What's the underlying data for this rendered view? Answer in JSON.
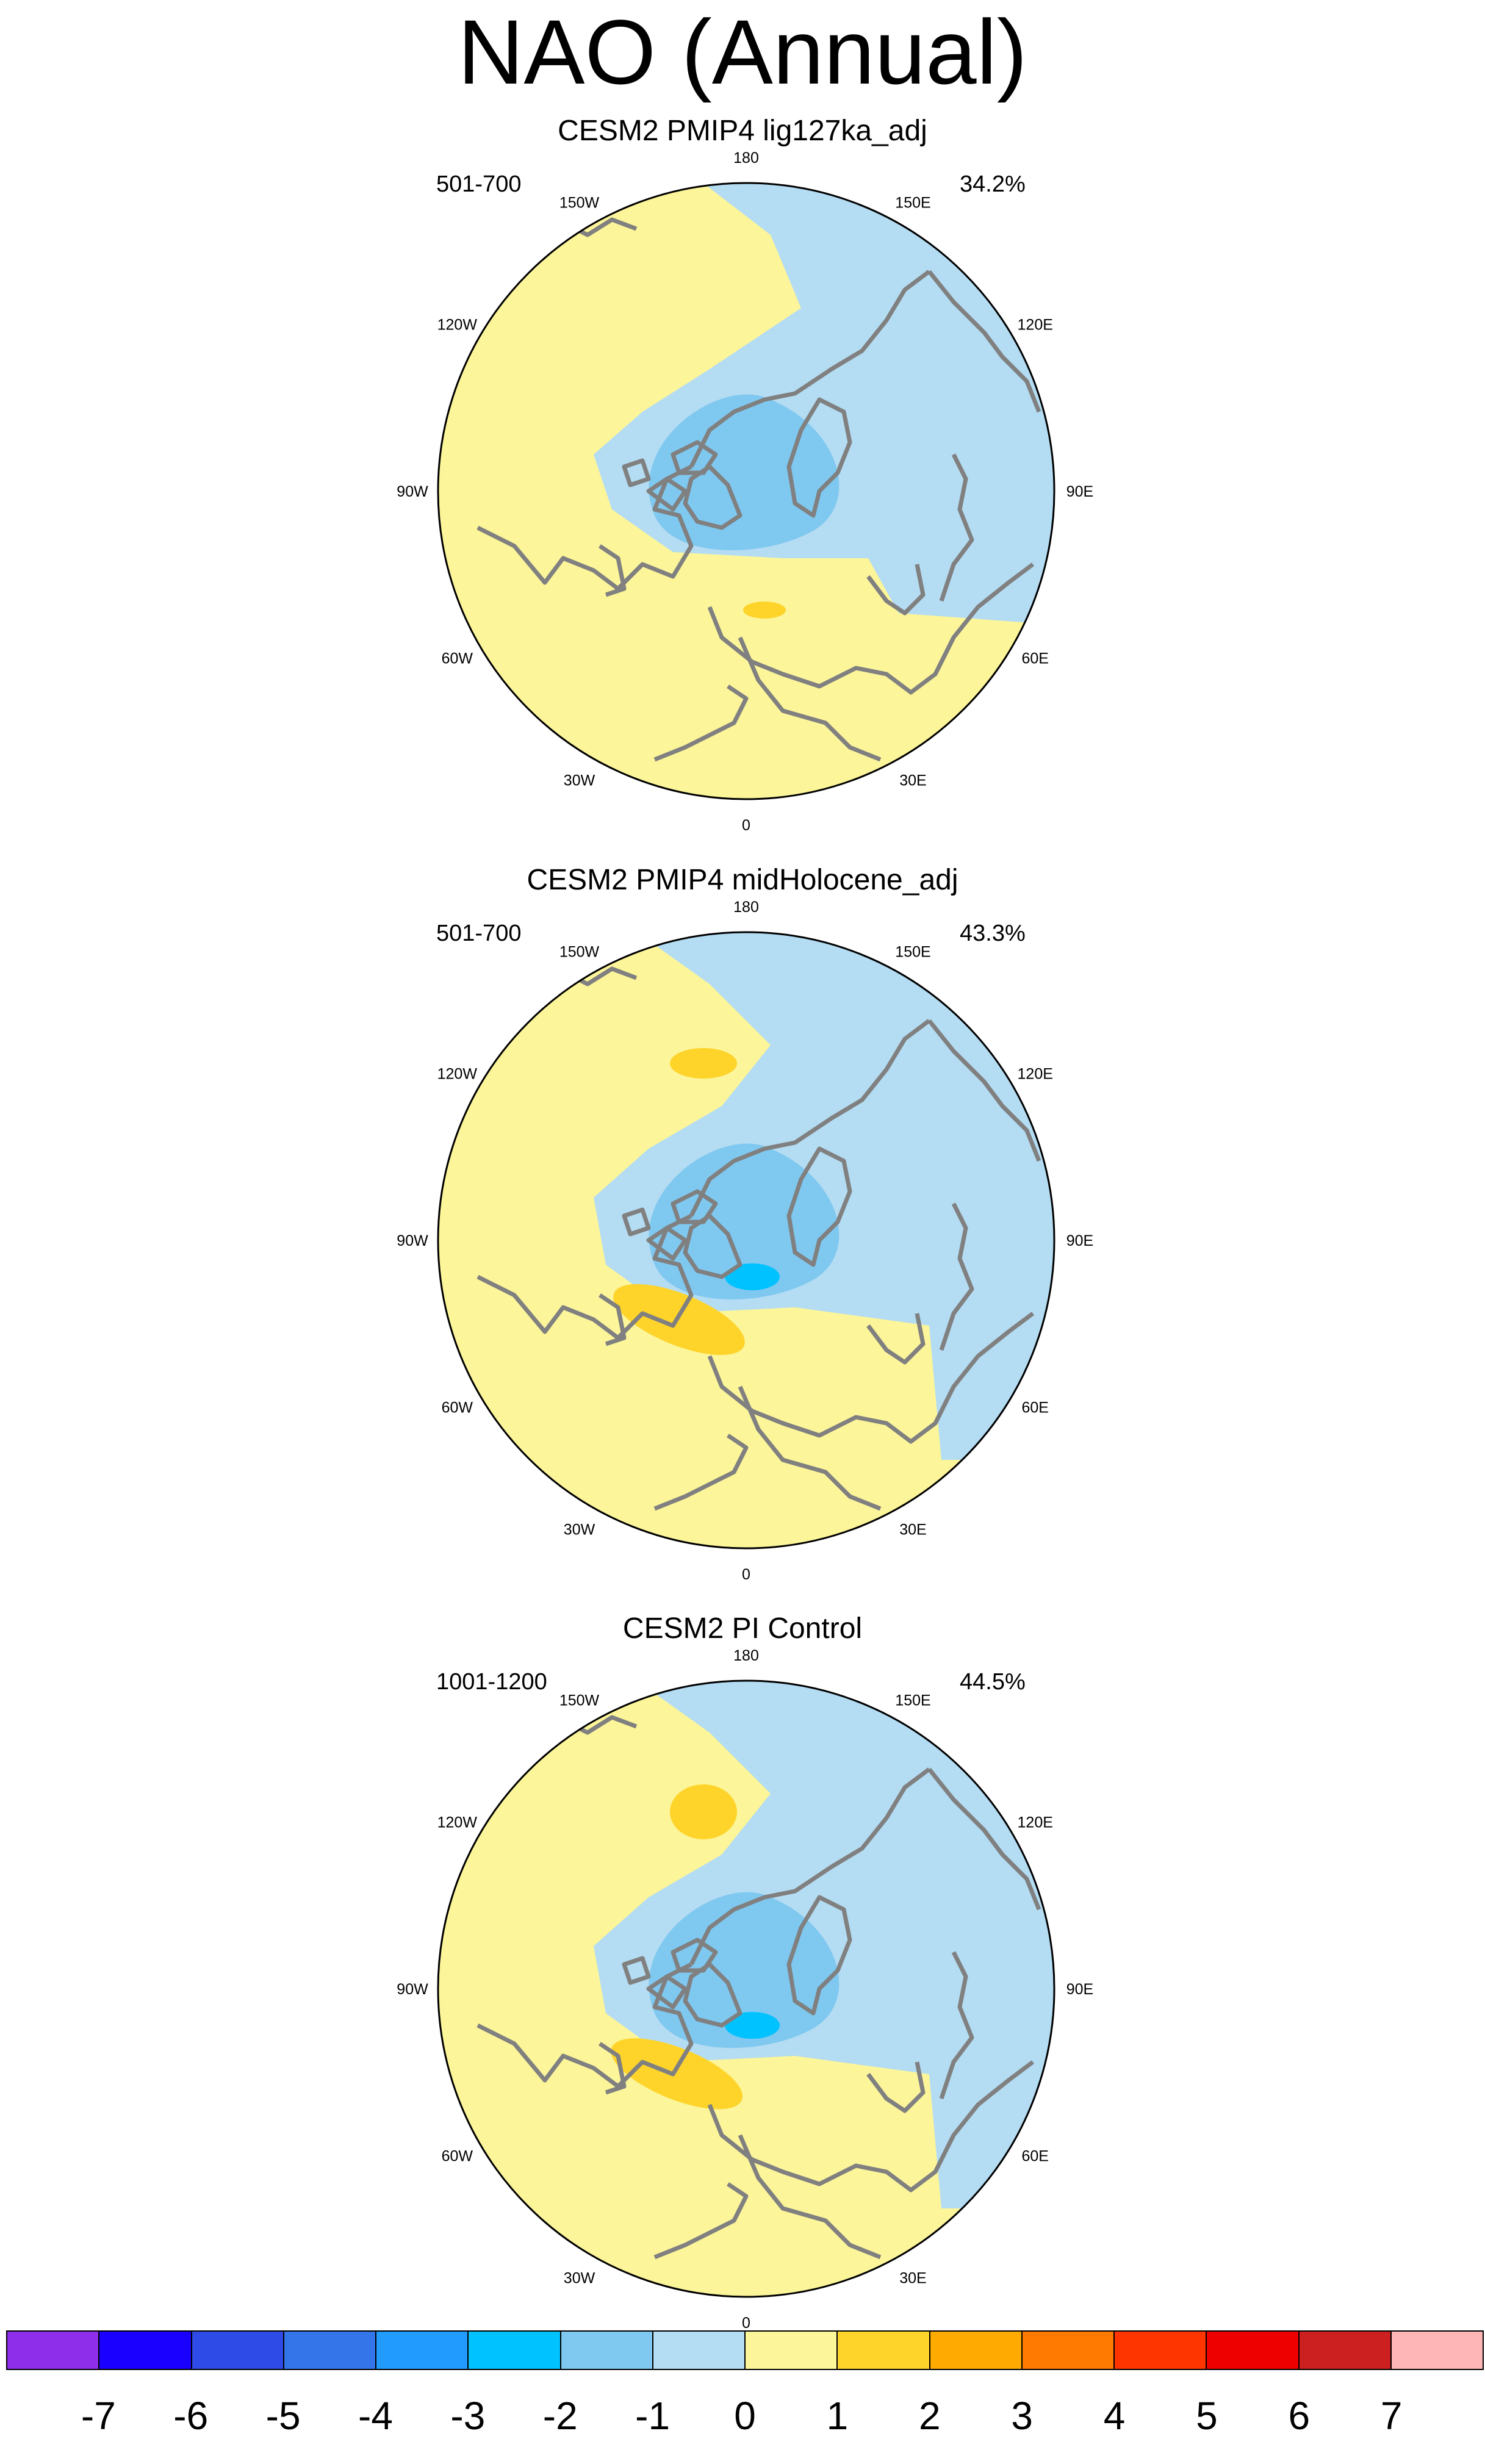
{
  "title": "NAO (Annual)",
  "colors": {
    "land": "#808080",
    "c-2": "#7fc8f0",
    "c-1": "#b4dcf2",
    "c0": "#fcf59a",
    "c1": "#fed42b",
    "c2": "#ffaa00"
  },
  "lon_labels": [
    "180",
    "150E",
    "120E",
    "90E",
    "60E",
    "30E",
    "0",
    "30W",
    "60W",
    "90W",
    "120W",
    "150W"
  ],
  "panels": [
    {
      "title": "CESM2 PMIP4 lig127ka_adj",
      "years": "501-700",
      "variance": "34.2%"
    },
    {
      "title": "CESM2 PMIP4 midHolocene_adj",
      "years": "501-700",
      "variance": "43.3%"
    },
    {
      "title": "CESM2 PI Control",
      "years": "1001-1200",
      "variance": "44.5%"
    }
  ],
  "colorbar": {
    "labels": [
      "-7",
      "-6",
      "-5",
      "-4",
      "-3",
      "-2",
      "-1",
      "0",
      "1",
      "2",
      "3",
      "4",
      "5",
      "6",
      "7"
    ],
    "colors": [
      "#8e2eea",
      "#1a00ff",
      "#2e4be8",
      "#3575ea",
      "#229bfe",
      "#00c2ff",
      "#7fc8f0",
      "#b4dcf2",
      "#fcf59a",
      "#fed42b",
      "#ffaa00",
      "#ff7a00",
      "#ff3500",
      "#ee0000",
      "#cc1f1f",
      "#ffb6b6"
    ]
  }
}
